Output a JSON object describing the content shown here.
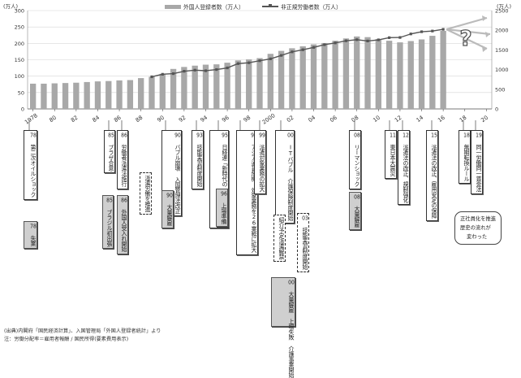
{
  "chart_data": {
    "type": "bar",
    "title": "",
    "y_left_unit": "(万人)",
    "y_right_unit": "(万人)",
    "y_left_ticks": [
      0,
      50,
      100,
      150,
      200,
      250,
      300
    ],
    "y_right_ticks": [
      0,
      500,
      1000,
      1500,
      2000,
      2500
    ],
    "ylim_left": [
      0,
      300
    ],
    "ylim_right": [
      0,
      2500
    ],
    "x_tick_labels": [
      "1978",
      "80",
      "82",
      "84",
      "86",
      "88",
      "90",
      "92",
      "94",
      "96",
      "98",
      "2000",
      "02",
      "04",
      "06",
      "08",
      "10",
      "12",
      "14",
      "16",
      "18",
      "20"
    ],
    "x_ticks_years": [
      1978,
      1980,
      1982,
      1984,
      1986,
      1988,
      1990,
      1992,
      1994,
      1996,
      1998,
      2000,
      2002,
      2004,
      2006,
      2008,
      2010,
      2012,
      2014,
      2016,
      2018,
      2020
    ],
    "xlim": [
      1977.5,
      2020.5
    ],
    "grid": true,
    "legend_position": "top-center",
    "series": [
      {
        "name": "外国人登録者数（万人）",
        "axis": "left",
        "type": "bar",
        "color": "#a8a8a8",
        "x": [
          1978,
          1979,
          1980,
          1981,
          1982,
          1983,
          1984,
          1985,
          1986,
          1987,
          1988,
          1989,
          1990,
          1991,
          1992,
          1993,
          1994,
          1995,
          1996,
          1997,
          1998,
          1999,
          2000,
          2001,
          2002,
          2003,
          2004,
          2005,
          2006,
          2007,
          2008,
          2009,
          2010,
          2011,
          2012,
          2013,
          2014,
          2015,
          2016
        ],
        "values": [
          77,
          77,
          78,
          79,
          80,
          82,
          84,
          85,
          87,
          88,
          94,
          98,
          107,
          122,
          128,
          132,
          135,
          136,
          141,
          148,
          151,
          155,
          168,
          177,
          185,
          191,
          197,
          201,
          208,
          215,
          221,
          219,
          213,
          208,
          203,
          207,
          212,
          223,
          238
        ]
      },
      {
        "name": "非正規労働者数（万人）",
        "axis": "right",
        "type": "line",
        "color": "#555555",
        "x": [
          1989,
          1990,
          1991,
          1992,
          1993,
          1994,
          1995,
          1996,
          1997,
          1998,
          1999,
          2000,
          2001,
          2002,
          2003,
          2004,
          2005,
          2006,
          2007,
          2008,
          2009,
          2010,
          2011,
          2012,
          2013,
          2014,
          2015,
          2016
        ],
        "values": [
          817,
          881,
          897,
          958,
          986,
          971,
          1001,
          1043,
          1152,
          1173,
          1225,
          1273,
          1360,
          1451,
          1504,
          1564,
          1633,
          1678,
          1732,
          1760,
          1727,
          1756,
          1811,
          1816,
          1906,
          1962,
          1980,
          2023
        ]
      }
    ],
    "forecast_arrows": 3,
    "question_mark": "?"
  },
  "events": [
    {
      "id": "e78a",
      "num": "78",
      "text": "第二次オイルショック",
      "style": "w"
    },
    {
      "id": "e78b",
      "num": "78",
      "text": "失業",
      "style": "g"
    },
    {
      "id": "e85a",
      "num": "85",
      "text": "プラザ合意",
      "style": "w"
    },
    {
      "id": "e85b",
      "num": "85",
      "text": "ブラジル初出張",
      "style": "g"
    },
    {
      "id": "e86a",
      "num": "86",
      "text": "労働者派遣法施行",
      "style": "w"
    },
    {
      "id": "e86b",
      "num": "86",
      "text": "外国人受入れ開始",
      "style": "g"
    },
    {
      "id": "ehaken",
      "num": "",
      "text": "派遣労働を推進",
      "style": "d"
    },
    {
      "id": "e90a",
      "num": "90",
      "text": "バブル崩壊 入国管理法改正",
      "style": "w"
    },
    {
      "id": "e90b",
      "num": "90",
      "text": "大量解雇",
      "style": "g"
    },
    {
      "id": "e93",
      "num": "93",
      "text": "技能実習制度開始",
      "style": "w"
    },
    {
      "id": "e95",
      "num": "95",
      "text": "日経連「新時代の『日本的経営』」",
      "style": "w"
    },
    {
      "id": "e96",
      "num": "96",
      "text": "上場準備",
      "style": "g"
    },
    {
      "id": "e97",
      "num": "97",
      "text": "アジア通貨危機 対象業務を26業務に拡大",
      "style": "w"
    },
    {
      "id": "e99",
      "num": "99",
      "text": "派遣対象業務の拡大",
      "style": "w"
    },
    {
      "id": "e00a",
      "num": "00",
      "text": "ITバブル 介護保険制度開始",
      "style": "w"
    },
    {
      "id": "eshokai",
      "num": "",
      "text": "紹介予定派遣解禁",
      "style": "d"
    },
    {
      "id": "e00b",
      "num": "00",
      "text": "大量解雇 上場失敗 介護事業開始",
      "style": "g"
    },
    {
      "id": "e03",
      "num": "03",
      "text": "技能実習制度開始",
      "style": "d"
    },
    {
      "id": "e08a",
      "num": "08",
      "text": "リーマンショック",
      "style": "w"
    },
    {
      "id": "e08b",
      "num": "08",
      "text": "大量解雇",
      "style": "g"
    },
    {
      "id": "e11",
      "num": "11",
      "text": "東日本大震災",
      "style": "w"
    },
    {
      "id": "e12",
      "num": "12",
      "text": "派遣法の改正、規制強化",
      "style": "w"
    },
    {
      "id": "e15",
      "num": "15",
      "text": "派遣法の改正、雇用安定の保障",
      "style": "w"
    },
    {
      "id": "e18",
      "num": "18",
      "text": "無期転換ルール",
      "style": "w"
    },
    {
      "id": "e19",
      "num": "19",
      "text": "同一労働同一賃金法",
      "style": "w"
    }
  ],
  "bubble": {
    "line1": "正社員化を推進",
    "line2": "歴史の流れが",
    "line3": "変わった"
  },
  "source": {
    "line1": "(出典)内閣府「国民経済計算」、入国管理局「外国人登録者統計」より",
    "line2": "注：労働分配率＝雇用者報酬 / 国民所得(要素費用表示)"
  }
}
